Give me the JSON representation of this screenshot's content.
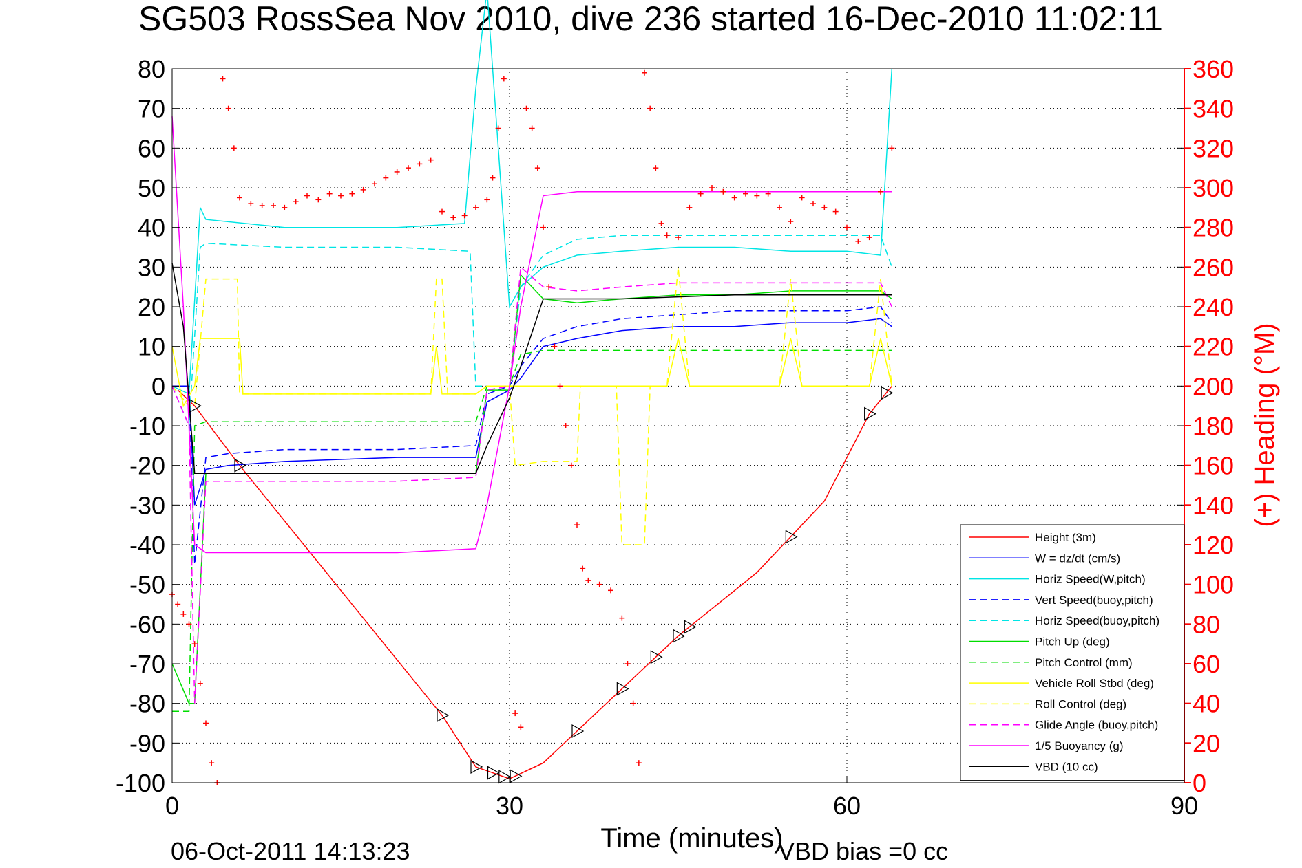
{
  "chart_data": {
    "type": "line",
    "title": "SG503 RossSea Nov 2010, dive 236 started 16-Dec-2010 11:02:11",
    "xlabel": "Time (minutes)",
    "ylabel": "",
    "ylabel_right": "(+) Heading (°M)",
    "xlim": [
      0,
      90
    ],
    "ylim": [
      -100,
      80
    ],
    "ylim_right": [
      0,
      360
    ],
    "x_ticks": [
      0,
      30,
      60,
      90
    ],
    "y_ticks": [
      80,
      70,
      60,
      50,
      40,
      30,
      20,
      10,
      0,
      -10,
      -20,
      -30,
      -40,
      -50,
      -60,
      -70,
      -80,
      -90,
      -100
    ],
    "y_ticks_right": [
      360,
      340,
      320,
      300,
      280,
      260,
      240,
      220,
      200,
      180,
      160,
      140,
      120,
      100,
      80,
      60,
      40,
      20,
      0
    ],
    "grid": true,
    "legend_position": "bottom-right",
    "footer_date": "06-Oct-2011 14:13:23",
    "footer_bias": "VBD bias =0 cc",
    "series": [
      {
        "name": "Height (3m)",
        "color": "#ff0000",
        "style": "solid",
        "x": [
          0.5,
          2,
          6,
          24,
          27,
          30,
          33,
          36,
          45,
          52,
          58,
          62,
          64
        ],
        "y": [
          -1,
          -5,
          -20,
          -83,
          -96,
          -99,
          -95,
          -87,
          -63,
          -47,
          -29,
          -7,
          0
        ]
      },
      {
        "name": "W = dz/dt (cm/s)",
        "color": "#0000ff",
        "style": "solid",
        "x": [
          0,
          1.5,
          2,
          3,
          5,
          10,
          20,
          27,
          28,
          30,
          31,
          33,
          36,
          40,
          45,
          50,
          55,
          60,
          63,
          64
        ],
        "y": [
          0,
          0,
          -30,
          -21,
          -20,
          -19,
          -18,
          -18,
          -4,
          -1,
          2,
          10,
          12,
          14,
          15,
          15,
          16,
          16,
          17,
          15
        ]
      },
      {
        "name": "Horiz Speed(W,pitch)",
        "color": "#00e5e5",
        "style": "solid",
        "x": [
          0,
          1.5,
          2.5,
          3,
          10,
          20,
          26,
          27,
          28,
          29,
          30,
          31,
          33,
          36,
          40,
          45,
          50,
          55,
          60,
          63,
          64
        ],
        "y": [
          0,
          -2,
          45,
          42,
          40,
          40,
          41,
          75,
          100,
          60,
          20,
          25,
          30,
          33,
          34,
          35,
          35,
          34,
          34,
          33,
          80
        ]
      },
      {
        "name": "Vert Speed(buoy,pitch)",
        "color": "#0000ff",
        "style": "dashed",
        "x": [
          0,
          1.5,
          2,
          3,
          5,
          10,
          20,
          27,
          28,
          30,
          31,
          33,
          36,
          40,
          45,
          50,
          55,
          60,
          63,
          64
        ],
        "y": [
          0,
          0,
          -45,
          -18,
          -17,
          -16,
          -16,
          -15,
          -2,
          0,
          5,
          12,
          15,
          17,
          18,
          19,
          19,
          19,
          20,
          16
        ]
      },
      {
        "name": "Horiz Speed(buoy,pitch)",
        "color": "#00e5e5",
        "style": "dashed",
        "x": [
          0,
          1.5,
          2.5,
          3,
          10,
          20,
          26.5,
          27,
          30,
          31,
          33,
          36,
          40,
          45,
          50,
          55,
          60,
          63,
          64
        ],
        "y": [
          0,
          -10,
          35,
          36,
          35,
          35,
          34,
          0,
          0,
          25,
          33,
          37,
          38,
          38,
          38,
          38,
          38,
          38,
          30
        ]
      },
      {
        "name": "Pitch Up (deg)",
        "color": "#00dd00",
        "style": "solid",
        "x": [
          0,
          1.5,
          2,
          3,
          10,
          20,
          27,
          28,
          30,
          31,
          33,
          36,
          40,
          45,
          50,
          55,
          60,
          63,
          64
        ],
        "y": [
          -70,
          -80,
          -80,
          -22,
          -22,
          -22,
          -22,
          -1,
          -1,
          28,
          22,
          21,
          22,
          23,
          23,
          24,
          24,
          24,
          22
        ]
      },
      {
        "name": "Pitch Control (mm)",
        "color": "#00dd00",
        "style": "dashed",
        "x": [
          0,
          1.5,
          2,
          3,
          10,
          20,
          27,
          28,
          30,
          31,
          33,
          36,
          40,
          45,
          50,
          55,
          60,
          63,
          64
        ],
        "y": [
          -82,
          -82,
          -10,
          -9,
          -9,
          -9,
          -9,
          0,
          0,
          8,
          9,
          9,
          9,
          9,
          9,
          9,
          9,
          9,
          9
        ]
      },
      {
        "name": "Vehicle Roll Stbd (deg)",
        "color": "#ffff00",
        "style": "solid",
        "x": [
          0,
          1,
          2,
          2.5,
          3,
          6,
          6.3,
          10,
          20,
          23,
          23.5,
          24,
          24.5,
          27,
          28,
          30,
          31,
          36,
          40,
          44,
          45,
          46,
          48,
          54,
          55,
          56,
          62,
          63,
          64
        ],
        "y": [
          10,
          -5,
          0,
          12,
          12,
          12,
          -2,
          -2,
          -2,
          -2,
          10,
          -2,
          -2,
          -2,
          0,
          0,
          0,
          0,
          0,
          0,
          12,
          0,
          0,
          0,
          12,
          0,
          0,
          12,
          0
        ]
      },
      {
        "name": "Roll Control (deg)",
        "color": "#ffff00",
        "style": "dashed",
        "x": [
          0,
          1.5,
          2,
          3,
          5.8,
          6,
          10,
          20,
          23,
          23.5,
          24,
          24.5,
          27,
          28,
          30,
          30.5,
          33,
          36,
          36.3,
          39.5,
          40,
          42,
          42.5,
          44,
          45,
          46,
          48,
          54,
          55,
          56,
          62,
          63,
          64
        ],
        "y": [
          0,
          -5,
          -5,
          27,
          27,
          -2,
          -2,
          -2,
          -2,
          27,
          27,
          -2,
          -2,
          0,
          0,
          -20,
          -19,
          -19,
          0,
          0,
          -40,
          -40,
          0,
          0,
          30,
          0,
          0,
          0,
          27,
          0,
          0,
          27,
          0
        ]
      },
      {
        "name": "Glide Angle (buoy,pitch)",
        "color": "#ff00ff",
        "style": "dashed",
        "x": [
          0,
          1.5,
          2,
          3,
          10,
          20,
          27,
          28,
          30,
          31,
          33,
          36,
          40,
          45,
          50,
          55,
          60,
          63,
          64
        ],
        "y": [
          0,
          -10,
          -80,
          -24,
          -24,
          -24,
          -23,
          -1,
          0,
          30,
          25,
          24,
          25,
          26,
          26,
          26,
          26,
          26,
          20
        ]
      },
      {
        "name": "1/5 Buoyancy (g)",
        "color": "#ff00ff",
        "style": "solid",
        "x": [
          0,
          1,
          2,
          3,
          10,
          20,
          27,
          28,
          30,
          31,
          33,
          36,
          40,
          50,
          60,
          64
        ],
        "y": [
          68,
          20,
          -40,
          -42,
          -42,
          -42,
          -41,
          -30,
          0,
          20,
          48,
          49,
          49,
          49,
          49,
          49
        ]
      },
      {
        "name": "VBD (10 cc)",
        "color": "#000000",
        "style": "solid",
        "x": [
          0,
          1,
          2,
          3,
          10,
          20,
          27,
          28,
          30,
          31,
          33,
          36,
          40,
          50,
          60,
          64
        ],
        "y": [
          31,
          15,
          -22,
          -22,
          -22,
          -22,
          -22,
          -15,
          -3,
          5,
          22,
          22,
          22,
          23,
          23,
          23
        ]
      }
    ],
    "heading_points": {
      "name": "(+) Heading (°M)",
      "color": "#ff0000",
      "x": [
        0,
        0.5,
        1,
        1.5,
        2,
        2.5,
        3,
        3.5,
        4,
        4.5,
        5,
        5.5,
        6,
        7,
        8,
        9,
        10,
        11,
        12,
        13,
        14,
        15,
        16,
        17,
        18,
        19,
        20,
        21,
        22,
        23,
        24,
        25,
        26,
        27,
        28,
        28.5,
        29,
        29.5,
        30.5,
        31,
        31.5,
        32,
        32.5,
        33,
        33.5,
        34,
        34.5,
        35,
        35.5,
        36,
        36.5,
        37,
        38,
        39,
        40,
        40.5,
        41,
        41.5,
        42,
        42.5,
        43,
        43.5,
        44,
        45,
        46,
        47,
        48,
        49,
        50,
        51,
        52,
        53,
        54,
        55,
        56,
        57,
        58,
        59,
        60,
        61,
        62,
        63,
        64
      ],
      "y": [
        95,
        90,
        85,
        80,
        70,
        50,
        30,
        10,
        0,
        355,
        340,
        320,
        295,
        292,
        291,
        291,
        290,
        293,
        296,
        294,
        297,
        296,
        297,
        299,
        302,
        305,
        308,
        310,
        312,
        314,
        288,
        285,
        286,
        290,
        294,
        305,
        330,
        355,
        35,
        28,
        340,
        330,
        310,
        280,
        250,
        220,
        200,
        180,
        160,
        130,
        108,
        102,
        100,
        97,
        83,
        60,
        40,
        10,
        358,
        340,
        310,
        282,
        276,
        275,
        290,
        297,
        300,
        298,
        295,
        297,
        296,
        297,
        290,
        283,
        295,
        292,
        290,
        288,
        280,
        273,
        275,
        298,
        320
      ]
    },
    "height_markers_x": [
      2,
      6,
      24,
      27,
      28.5,
      29.5,
      30.5,
      36,
      40,
      43,
      45,
      46,
      55,
      62,
      63.5
    ]
  }
}
